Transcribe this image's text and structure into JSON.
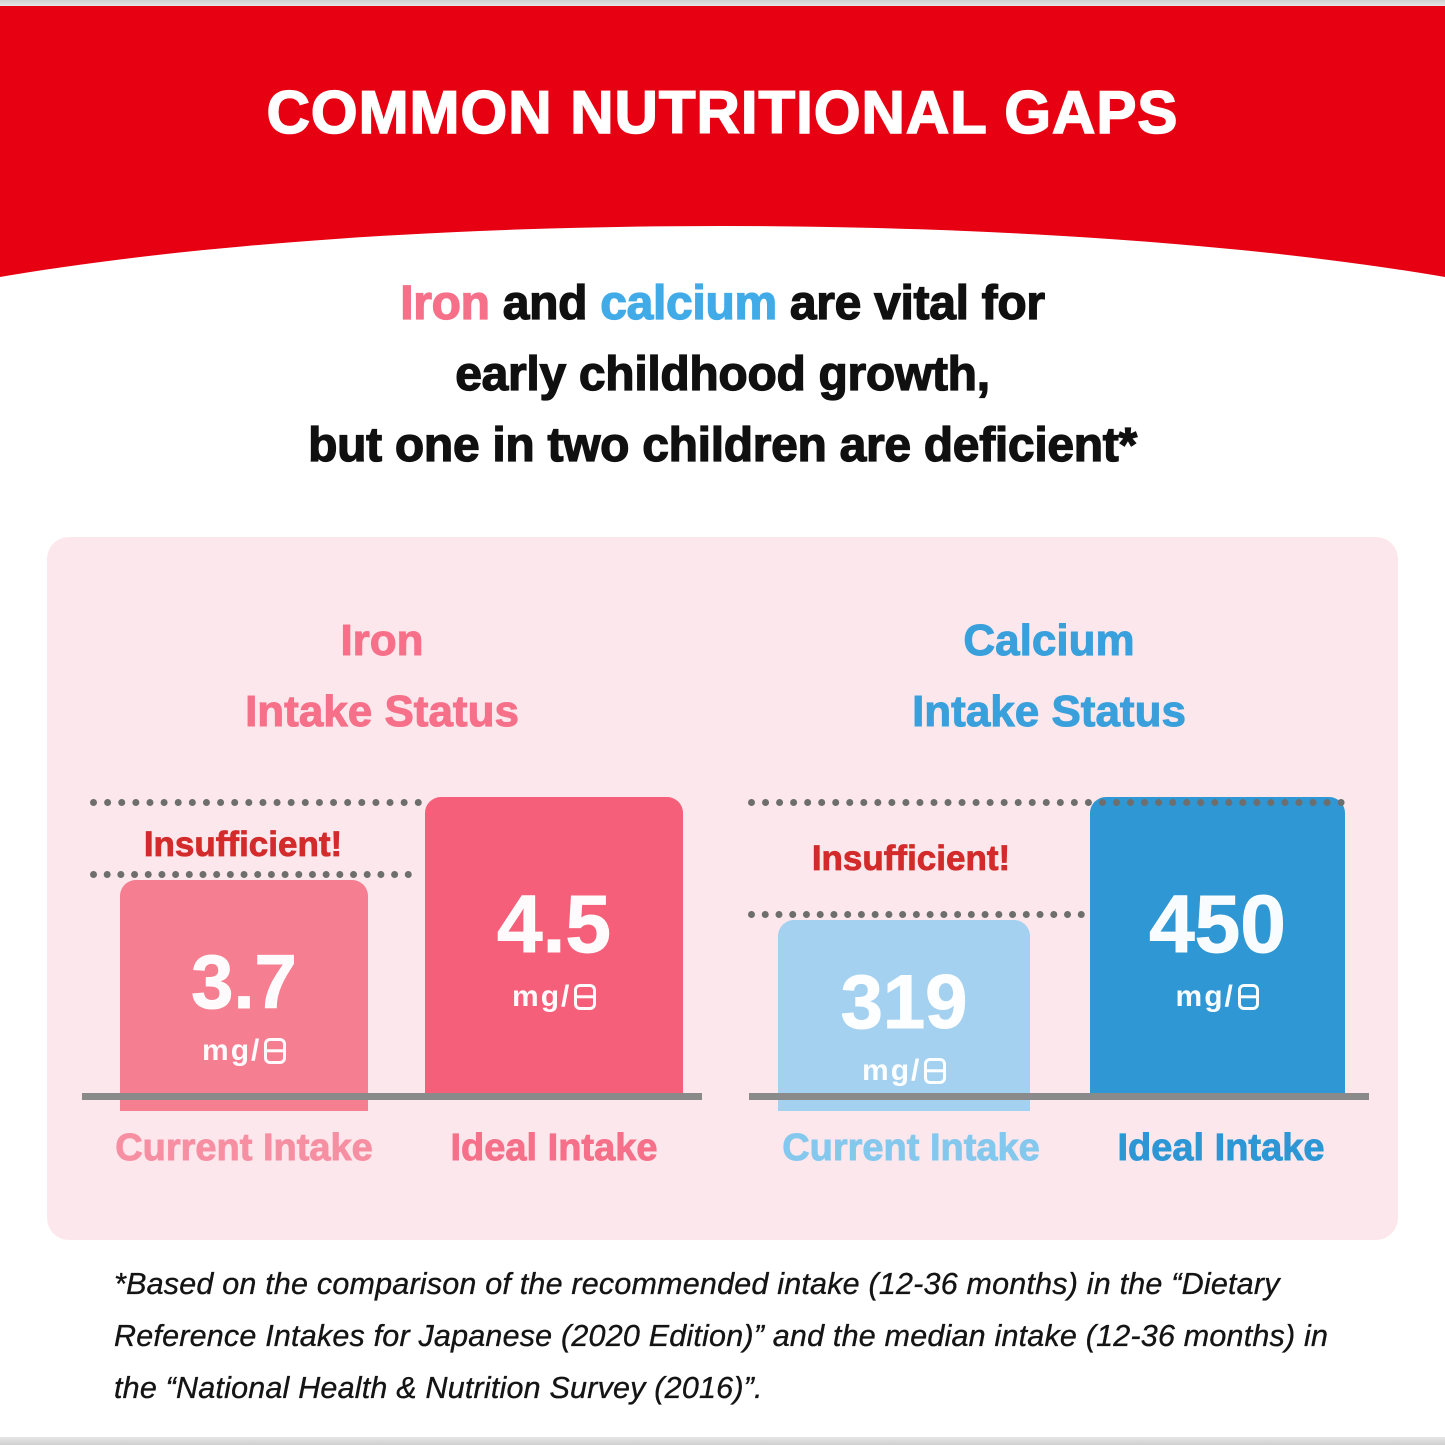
{
  "colors": {
    "banner_red": "#E60012",
    "heading_black": "#101010",
    "iron_accent": "#F6708A",
    "calcium_accent": "#41ABE8",
    "panel_background": "#FCE8EC",
    "iron_current_bar": "#F57E91",
    "iron_ideal_bar": "#F55F7A",
    "calcium_current_bar": "#A5D1F1",
    "calcium_ideal_bar": "#2F97D3",
    "insufficient_red": "#D32B2B",
    "dotted_line": "#6E6E6E",
    "baseline_gray": "#8A8A8A"
  },
  "banner": {
    "title": "COMMON NUTRITIONAL GAPS"
  },
  "heading": {
    "line1_segments": [
      {
        "text": "Iron"
      },
      {
        "text": " and "
      },
      {
        "text": "calcium"
      },
      {
        "text": " are vital for"
      }
    ],
    "line2": "early childhood growth,",
    "line3": "but one in two children are deficient*"
  },
  "charts": {
    "iron": {
      "title_line1": "Iron",
      "title_line2": "Intake Status",
      "insufficient": "Insufficient!",
      "bars": {
        "current": {
          "value": "3.7",
          "unit_prefix": "mg/",
          "unit_day_symbol": "日",
          "label": "Current Intake"
        },
        "ideal": {
          "value": "4.5",
          "unit_prefix": "mg/",
          "unit_day_symbol": "日",
          "label": "Ideal Intake"
        }
      }
    },
    "calcium": {
      "title_line1": "Calcium",
      "title_line2": "Intake Status",
      "insufficient": "Insufficient!",
      "bars": {
        "current": {
          "value": "319",
          "unit_prefix": "mg/",
          "unit_day_symbol": "日",
          "label": "Current Intake"
        },
        "ideal": {
          "value": "450",
          "unit_prefix": "mg/",
          "unit_day_symbol": "日",
          "label": "Ideal Intake"
        }
      }
    }
  },
  "footnote": {
    "lines": [
      "*Based on the comparison of the recommended intake (12-36 months) in the “Dietary",
      "Reference Intakes for Japanese (2020 Edition)” and the median intake (12-36 months) in",
      "the “National Health & Nutrition Survey (2016)”."
    ]
  },
  "chart_data": [
    {
      "type": "bar",
      "title": "Iron Intake Status",
      "categories": [
        "Current Intake",
        "Ideal Intake"
      ],
      "values": [
        3.7,
        4.5
      ],
      "unit": "mg/日 (mg per day)",
      "annotation": "Insufficient!",
      "bar_colors": [
        "#F57E91",
        "#F55F7A"
      ],
      "reference_lines": [
        "ideal level (4.5)",
        "current level (3.7)"
      ],
      "legend_position": "none",
      "grid": false
    },
    {
      "type": "bar",
      "title": "Calcium Intake Status",
      "categories": [
        "Current Intake",
        "Ideal Intake"
      ],
      "values": [
        319,
        450
      ],
      "unit": "mg/日 (mg per day)",
      "annotation": "Insufficient!",
      "bar_colors": [
        "#A5D1F1",
        "#2F97D3"
      ],
      "reference_lines": [
        "ideal level (450)",
        "current level (319)"
      ],
      "legend_position": "none",
      "grid": false
    }
  ]
}
